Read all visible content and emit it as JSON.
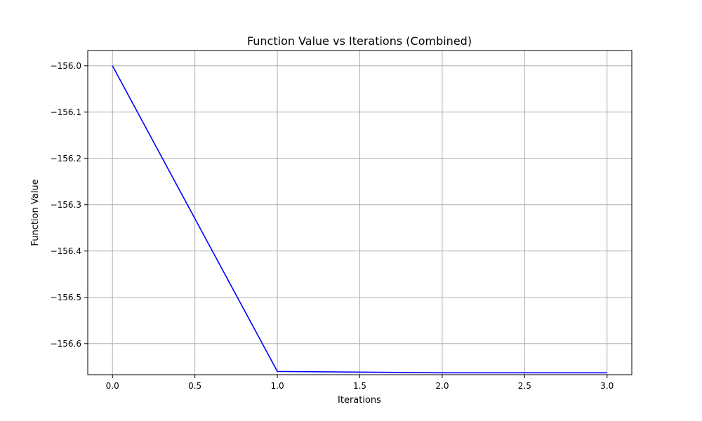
{
  "chart_data": {
    "type": "line",
    "title": "Function Value vs Iterations (Combined)",
    "xlabel": "Iterations",
    "ylabel": "Function Value",
    "xlim": [
      -0.15,
      3.15
    ],
    "ylim": [
      -156.667,
      -155.967
    ],
    "grid": true,
    "x_ticks": [
      0.0,
      0.5,
      1.0,
      1.5,
      2.0,
      2.5,
      3.0
    ],
    "x_tick_labels": [
      "0.0",
      "0.5",
      "1.0",
      "1.5",
      "2.0",
      "2.5",
      "3.0"
    ],
    "y_ticks": [
      -156.0,
      -156.1,
      -156.2,
      -156.3,
      -156.4,
      -156.5,
      -156.6
    ],
    "y_tick_labels": [
      "−156.0",
      "−156.1",
      "−156.2",
      "−156.3",
      "−156.4",
      "−156.5",
      "−156.6"
    ],
    "series": [
      {
        "color": "#0000ff",
        "x": [
          0,
          1,
          2,
          3
        ],
        "y": [
          -156.0,
          -156.66,
          -156.663,
          -156.663
        ]
      }
    ]
  }
}
